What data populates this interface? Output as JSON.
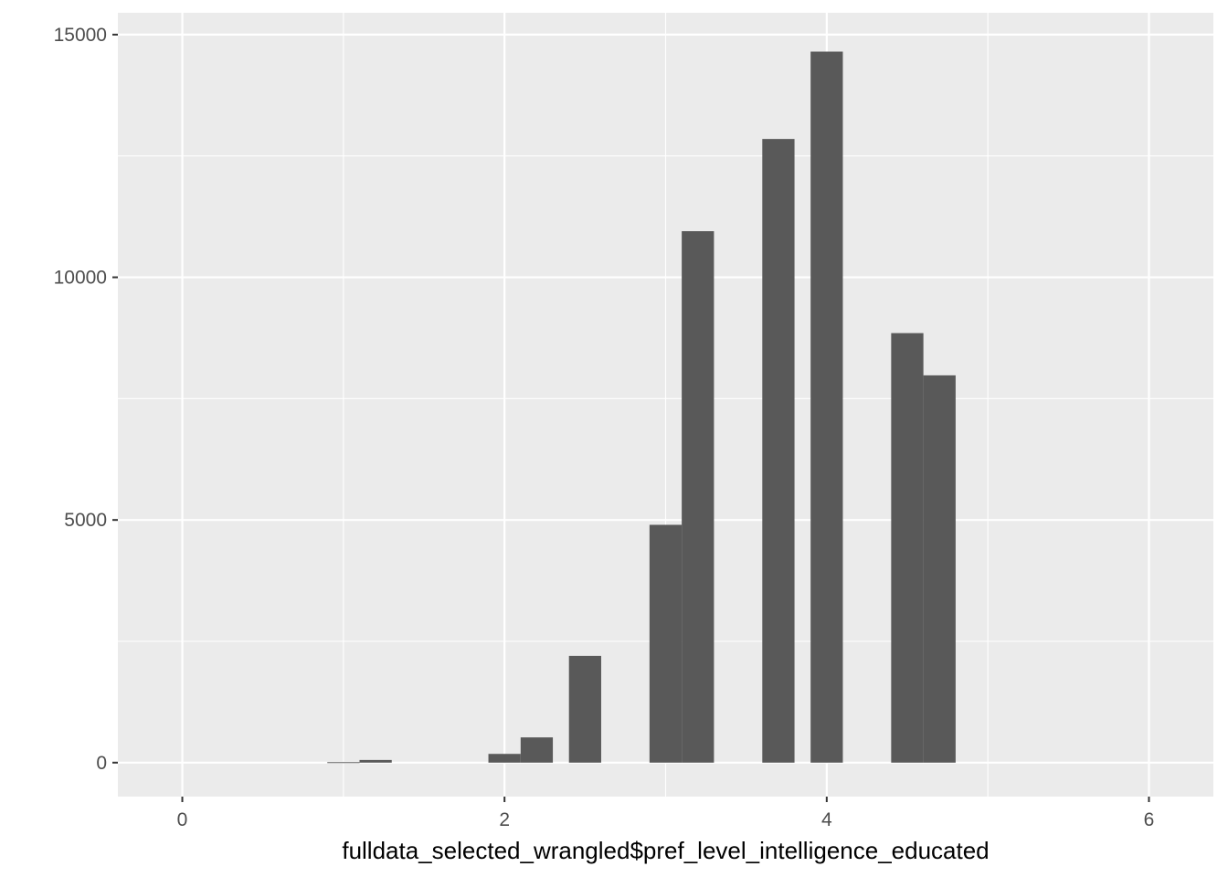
{
  "chart_data": {
    "type": "bar",
    "title": "",
    "xlabel": "fulldata_selected_wrangled$pref_level_intelligence_educated",
    "ylabel": "",
    "x": [
      0,
      0.2,
      0.5,
      0.7,
      1.0,
      1.2,
      1.5,
      1.7,
      2.0,
      2.2,
      2.5,
      2.7,
      3.0,
      3.2,
      3.5,
      3.7,
      4.0,
      4.2,
      4.5,
      4.7,
      5.0,
      5.2,
      5.5,
      5.7,
      6.0
    ],
    "values": [
      0,
      0,
      0,
      0,
      10,
      55,
      0,
      0,
      180,
      520,
      2200,
      0,
      4900,
      10950,
      0,
      12850,
      14650,
      0,
      8850,
      7980,
      0,
      0,
      0,
      0,
      0
    ],
    "bar_width": 0.2,
    "xlim": [
      -0.4,
      6.4
    ],
    "ylim": [
      -700,
      15450
    ],
    "x_ticks": [
      0,
      2,
      4,
      6
    ],
    "x_minor": [
      1,
      3,
      5
    ],
    "y_ticks": [
      0,
      5000,
      10000,
      15000
    ],
    "y_minor": [
      2500,
      7500,
      12500
    ],
    "grid": true,
    "colors": {
      "panel": "#ebebeb",
      "grid": "#ffffff",
      "bar": "#595959",
      "tick": "#333333"
    }
  }
}
